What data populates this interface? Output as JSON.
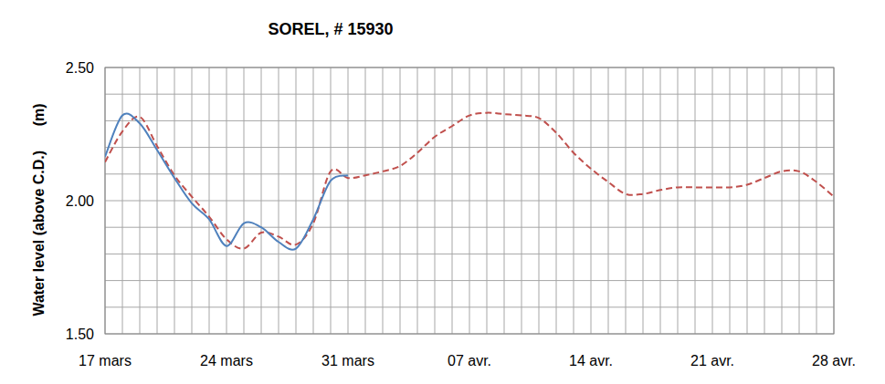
{
  "chart_data": {
    "type": "line",
    "title": "SOREL, # 15930",
    "y_label": "Water level (above C.D.)      (m)",
    "categories": [
      "17 mars",
      null,
      null,
      null,
      null,
      null,
      null,
      "24 mars",
      null,
      null,
      null,
      null,
      null,
      null,
      "31 mars",
      null,
      null,
      null,
      null,
      null,
      null,
      "07 avr.",
      null,
      null,
      null,
      null,
      null,
      null,
      "14 avr.",
      null,
      null,
      null,
      null,
      null,
      null,
      "21 avr.",
      null,
      null,
      null,
      null,
      null,
      null,
      "28 avr."
    ],
    "series": [
      {
        "color": "#4f81bd",
        "line_style": "solid",
        "values": [
          2.165,
          2.32,
          2.29,
          2.19,
          2.085,
          1.99,
          1.93,
          1.83,
          1.915,
          1.9,
          1.845,
          1.82,
          1.93,
          2.075,
          2.095,
          null,
          null,
          null,
          null,
          null,
          null,
          null,
          null,
          null,
          null,
          null,
          null,
          null,
          null,
          null,
          null,
          null,
          null,
          null,
          null,
          null,
          null,
          null,
          null,
          null,
          null,
          null,
          null
        ]
      },
      {
        "color": "#c0504d",
        "line_style": "dashed",
        "values": [
          2.145,
          2.26,
          2.315,
          2.205,
          2.095,
          2.015,
          1.94,
          1.855,
          1.82,
          1.88,
          1.865,
          1.835,
          1.915,
          2.11,
          2.085,
          2.095,
          2.11,
          2.13,
          2.18,
          2.24,
          2.28,
          2.32,
          2.33,
          2.325,
          2.32,
          2.31,
          2.255,
          2.18,
          2.12,
          2.07,
          2.025,
          2.025,
          2.04,
          2.05,
          2.05,
          2.05,
          2.05,
          2.06,
          2.085,
          2.11,
          2.11,
          2.07,
          2.015
        ]
      }
    ],
    "ylim": [
      1.5,
      2.5
    ],
    "yticks": [
      {
        "value": 1.5,
        "label": "1.50"
      },
      {
        "value": 2.0,
        "label": "2.00"
      },
      {
        "value": 2.5,
        "label": "2.50"
      }
    ],
    "grid": true
  }
}
